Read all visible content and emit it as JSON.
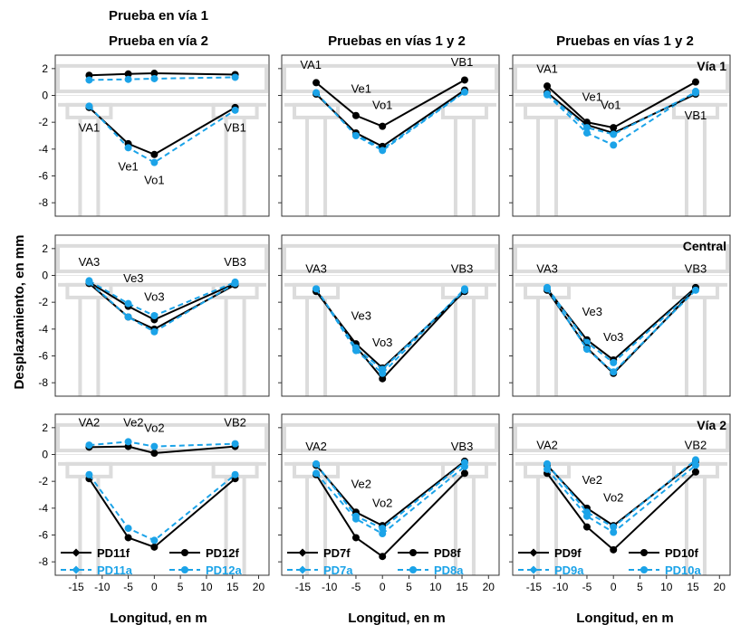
{
  "colors": {
    "black": "#000000",
    "blue": "#1ba3e8",
    "ghost": "#d6d6d6"
  },
  "col_titles": [
    [
      "Prueba en vía 1",
      "Prueba en vía 2"
    ],
    [
      "Pruebas en vías 1 y 2"
    ],
    [
      "Pruebas en vías 1 y 2"
    ]
  ],
  "row_strips": [
    "Vía 1",
    "Central",
    "Vía 2"
  ],
  "ylabel": "Desplazamiento, en mm",
  "xlabel": "Longitud, en m",
  "chart_data": {
    "type": "line",
    "xlim": [
      -19,
      22
    ],
    "ylim": [
      -9,
      3
    ],
    "xticks": [
      -15,
      -10,
      -5,
      0,
      5,
      10,
      15,
      20
    ],
    "yticks": [
      2,
      0,
      -2,
      -4,
      -6,
      -8
    ],
    "x": [
      -12.5,
      -5,
      0,
      15.5
    ],
    "panels": [
      {
        "row": 0,
        "col": 0,
        "series": [
          {
            "style": "black-solid",
            "values": [
              -0.9,
              -3.6,
              -4.4,
              -0.9
            ]
          },
          {
            "style": "blue-dashed",
            "values": [
              -0.8,
              -3.9,
              -5.0,
              -1.1
            ]
          },
          {
            "style": "black-solid",
            "values": [
              1.5,
              1.6,
              1.65,
              1.55
            ]
          },
          {
            "style": "blue-dashed",
            "values": [
              1.15,
              1.2,
              1.25,
              1.35
            ]
          }
        ],
        "labels": [
          {
            "text": "VA1",
            "x": -12.5,
            "y": -2.7
          },
          {
            "text": "Ve1",
            "x": -5,
            "y": -5.6
          },
          {
            "text": "Vo1",
            "x": 0,
            "y": -6.6
          },
          {
            "text": "VB1",
            "x": 15.5,
            "y": -2.7
          }
        ]
      },
      {
        "row": 0,
        "col": 1,
        "series": [
          {
            "style": "black-solid",
            "values": [
              0.95,
              -1.5,
              -2.3,
              1.15
            ]
          },
          {
            "style": "blue-dashed",
            "values": [
              0.15,
              -2.9,
              -4.0,
              0.3
            ]
          },
          {
            "style": "black-solid",
            "values": [
              0.1,
              -2.8,
              -3.8,
              0.4
            ]
          },
          {
            "style": "blue-dashed",
            "values": [
              0.2,
              -3.0,
              -4.1,
              0.25
            ]
          }
        ],
        "labels": [
          {
            "text": "VA1",
            "x": -13.5,
            "y": 2.0
          },
          {
            "text": "Ve1",
            "x": -4,
            "y": 0.2
          },
          {
            "text": "Vo1",
            "x": 0,
            "y": -1.0
          },
          {
            "text": "VB1",
            "x": 15,
            "y": 2.2
          }
        ]
      },
      {
        "row": 0,
        "col": 2,
        "series": [
          {
            "style": "black-solid",
            "values": [
              0.7,
              -2.0,
              -2.4,
              1.0
            ]
          },
          {
            "style": "blue-dashed",
            "values": [
              0.05,
              -2.8,
              -3.7,
              0.3
            ]
          },
          {
            "style": "black-solid",
            "values": [
              0.2,
              -2.2,
              -2.8,
              0.1
            ]
          },
          {
            "style": "blue-dashed",
            "values": [
              0.1,
              -2.4,
              -2.9,
              0.2
            ]
          }
        ],
        "labels": [
          {
            "text": "VA1",
            "x": -12.5,
            "y": 1.7
          },
          {
            "text": "Ve1",
            "x": -4,
            "y": -0.4
          },
          {
            "text": "Vo1",
            "x": -0.5,
            "y": -1.0
          },
          {
            "text": "VB1",
            "x": 15.5,
            "y": -1.8
          }
        ]
      },
      {
        "row": 1,
        "col": 0,
        "series": [
          {
            "style": "black-solid",
            "values": [
              -0.5,
              -2.3,
              -3.3,
              -0.6
            ]
          },
          {
            "style": "blue-dashed",
            "values": [
              -0.4,
              -2.1,
              -3.0,
              -0.5
            ]
          },
          {
            "style": "black-solid",
            "values": [
              -0.6,
              -3.1,
              -4.0,
              -0.7
            ]
          },
          {
            "style": "blue-dashed",
            "values": [
              -0.5,
              -3.1,
              -4.2,
              -0.6
            ]
          }
        ],
        "labels": [
          {
            "text": "VA3",
            "x": -12.5,
            "y": 0.7
          },
          {
            "text": "Ve3",
            "x": -4,
            "y": -0.5
          },
          {
            "text": "Vo3",
            "x": 0,
            "y": -1.9
          },
          {
            "text": "VB3",
            "x": 15.5,
            "y": 0.7
          }
        ]
      },
      {
        "row": 1,
        "col": 1,
        "series": [
          {
            "style": "black-solid",
            "values": [
              -1.1,
              -5.3,
              -7.7,
              -1.1
            ]
          },
          {
            "style": "blue-dashed",
            "values": [
              -1.0,
              -5.6,
              -7.3,
              -1.0
            ]
          },
          {
            "style": "black-solid",
            "values": [
              -1.2,
              -5.1,
              -6.9,
              -1.2
            ]
          },
          {
            "style": "blue-dashed",
            "values": [
              -1.0,
              -5.4,
              -7.0,
              -1.1
            ]
          }
        ],
        "labels": [
          {
            "text": "VA3",
            "x": -12.5,
            "y": 0.2
          },
          {
            "text": "Ve3",
            "x": -4,
            "y": -3.3
          },
          {
            "text": "Vo3",
            "x": 0,
            "y": -5.3
          },
          {
            "text": "VB3",
            "x": 15,
            "y": 0.2
          }
        ]
      },
      {
        "row": 1,
        "col": 2,
        "series": [
          {
            "style": "black-solid",
            "values": [
              -1.0,
              -4.8,
              -6.3,
              -0.9
            ]
          },
          {
            "style": "blue-dashed",
            "values": [
              -0.9,
              -5.0,
              -6.5,
              -1.0
            ]
          },
          {
            "style": "black-solid",
            "values": [
              -1.1,
              -5.4,
              -7.3,
              -1.0
            ]
          },
          {
            "style": "blue-dashed",
            "values": [
              -1.0,
              -5.5,
              -7.2,
              -1.1
            ]
          }
        ],
        "labels": [
          {
            "text": "VA3",
            "x": -12.5,
            "y": 0.2
          },
          {
            "text": "Ve3",
            "x": -4,
            "y": -3.0
          },
          {
            "text": "Vo3",
            "x": 0,
            "y": -4.9
          },
          {
            "text": "VB3",
            "x": 15.5,
            "y": 0.2
          }
        ]
      },
      {
        "row": 2,
        "col": 0,
        "series": [
          {
            "style": "black-solid",
            "values": [
              0.55,
              0.6,
              0.1,
              0.6
            ]
          },
          {
            "style": "blue-dashed",
            "values": [
              0.7,
              0.95,
              0.6,
              0.8
            ]
          },
          {
            "style": "black-solid",
            "values": [
              -1.8,
              -6.2,
              -6.9,
              -1.8
            ]
          },
          {
            "style": "blue-dashed",
            "values": [
              -1.5,
              -5.5,
              -6.4,
              -1.5
            ]
          }
        ],
        "labels": [
          {
            "text": "VA2",
            "x": -12.5,
            "y": 2.1
          },
          {
            "text": "Ve2",
            "x": -4,
            "y": 2.1
          },
          {
            "text": "Vo2",
            "x": 0,
            "y": 1.7
          },
          {
            "text": "VB2",
            "x": 15.5,
            "y": 2.1
          }
        ]
      },
      {
        "row": 2,
        "col": 1,
        "series": [
          {
            "style": "black-solid",
            "values": [
              -0.8,
              -4.3,
              -5.3,
              -0.5
            ]
          },
          {
            "style": "blue-dashed",
            "values": [
              -0.7,
              -4.6,
              -5.5,
              -0.6
            ]
          },
          {
            "style": "black-solid",
            "values": [
              -1.5,
              -6.2,
              -7.6,
              -1.4
            ]
          },
          {
            "style": "blue-dashed",
            "values": [
              -1.4,
              -4.8,
              -5.9,
              -0.9
            ]
          }
        ],
        "labels": [
          {
            "text": "VA2",
            "x": -12.5,
            "y": 0.3
          },
          {
            "text": "Ve2",
            "x": -4,
            "y": -2.5
          },
          {
            "text": "Vo2",
            "x": 0,
            "y": -3.9
          },
          {
            "text": "VB3",
            "x": 15,
            "y": 0.3
          }
        ]
      },
      {
        "row": 2,
        "col": 2,
        "series": [
          {
            "style": "black-solid",
            "values": [
              -0.8,
              -4.0,
              -5.3,
              -0.5
            ]
          },
          {
            "style": "blue-dashed",
            "values": [
              -0.7,
              -4.3,
              -5.4,
              -0.4
            ]
          },
          {
            "style": "black-solid",
            "values": [
              -1.4,
              -5.4,
              -7.1,
              -1.3
            ]
          },
          {
            "style": "blue-dashed",
            "values": [
              -1.1,
              -4.6,
              -5.8,
              -0.8
            ]
          }
        ],
        "labels": [
          {
            "text": "VA2",
            "x": -12.5,
            "y": 0.4
          },
          {
            "text": "Ve2",
            "x": -4,
            "y": -2.2
          },
          {
            "text": "Vo2",
            "x": 0,
            "y": -3.5
          },
          {
            "text": "VB2",
            "x": 15.5,
            "y": 0.4
          }
        ]
      }
    ],
    "legends": [
      [
        {
          "name": "PD11f",
          "style": "black-solid",
          "marker": "diamond"
        },
        {
          "name": "PD12f",
          "style": "black-solid",
          "marker": "circle"
        },
        {
          "name": "PD11a",
          "style": "blue-dashed",
          "marker": "diamond"
        },
        {
          "name": "PD12a",
          "style": "blue-dashed",
          "marker": "circle"
        }
      ],
      [
        {
          "name": "PD7f",
          "style": "black-solid",
          "marker": "diamond"
        },
        {
          "name": "PD8f",
          "style": "black-solid",
          "marker": "circle"
        },
        {
          "name": "PD7a",
          "style": "blue-dashed",
          "marker": "diamond"
        },
        {
          "name": "PD8a",
          "style": "blue-dashed",
          "marker": "circle"
        }
      ],
      [
        {
          "name": "PD9f",
          "style": "black-solid",
          "marker": "diamond"
        },
        {
          "name": "PD10f",
          "style": "black-solid",
          "marker": "circle"
        },
        {
          "name": "PD9a",
          "style": "blue-dashed",
          "marker": "diamond"
        },
        {
          "name": "PD10a",
          "style": "blue-dashed",
          "marker": "circle"
        }
      ]
    ]
  }
}
